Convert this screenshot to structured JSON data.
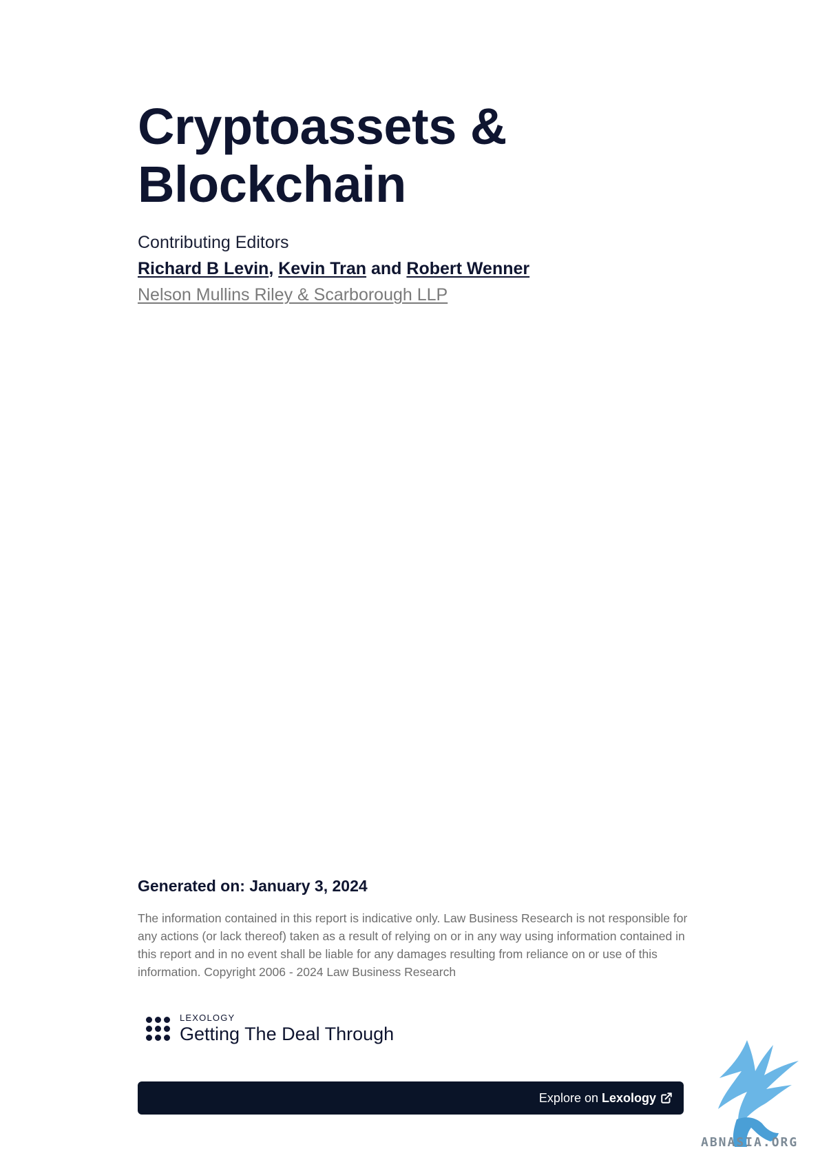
{
  "document": {
    "title_line1": "Cryptoassets &",
    "title_line2": "Blockchain",
    "contributing_label": "Contributing Editors",
    "editors": [
      "Richard B Levin",
      "Kevin Tran",
      "Robert Wenner"
    ],
    "editor_sep_comma": ", ",
    "editor_sep_and": " and ",
    "firm": "Nelson Mullins Riley & Scarborough LLP",
    "generated_on": "Generated on: January 3, 2024",
    "disclaimer": "The information contained in this report is indicative only. Law Business Research is not responsible for any actions (or lack thereof) taken as a result of relying on or in any way using information contained in this report and in no event shall be liable for any damages resulting from reliance on or use of this information.  Copyright 2006 - 2024 Law Business Research"
  },
  "logo": {
    "small": "LEXOLOGY",
    "big": "Getting The Deal Through"
  },
  "explore": {
    "prefix": "Explore on",
    "brand": "Lexology",
    "icon": "external-link-icon"
  },
  "watermark": {
    "text": "ABNASIA.ORG",
    "icon": "griffin-logo-icon",
    "color": "#5aaee3"
  },
  "colors": {
    "navy": "#0f1530",
    "bar": "#0a1428",
    "muted": "#6e6e6e"
  }
}
